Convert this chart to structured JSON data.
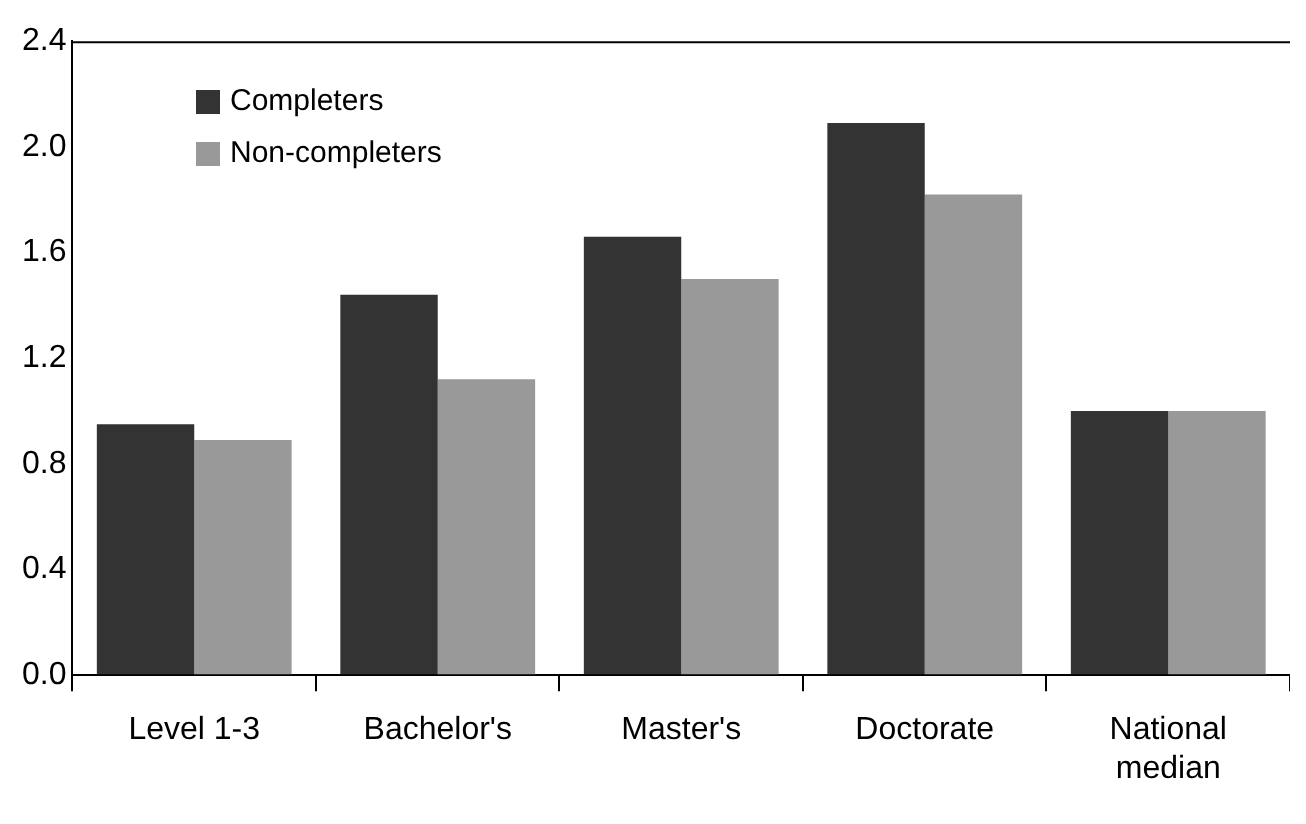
{
  "chart_data": {
    "type": "bar",
    "categories": [
      "Level 1-3",
      "Bachelor's",
      "Master's",
      "Doctorate",
      "National median"
    ],
    "series": [
      {
        "name": "Completers",
        "color": "#333333",
        "values": [
          0.95,
          1.44,
          1.66,
          2.09,
          1.0
        ]
      },
      {
        "name": "Non-completers",
        "color": "#999999",
        "values": [
          0.89,
          1.12,
          1.5,
          1.82,
          1.0
        ]
      }
    ],
    "ylim": [
      0,
      2.4
    ],
    "yticks": [
      {
        "value": 0,
        "label": "0.0"
      },
      {
        "value": 0.4,
        "label": "0.4"
      },
      {
        "value": 0.8,
        "label": "0.8"
      },
      {
        "value": 1.2,
        "label": "1.2"
      },
      {
        "value": 1.6,
        "label": "1.6"
      },
      {
        "value": 2.0,
        "label": "2.0"
      },
      {
        "value": 2.4,
        "label": "2.4"
      }
    ],
    "grid": false,
    "legend": "top left"
  }
}
